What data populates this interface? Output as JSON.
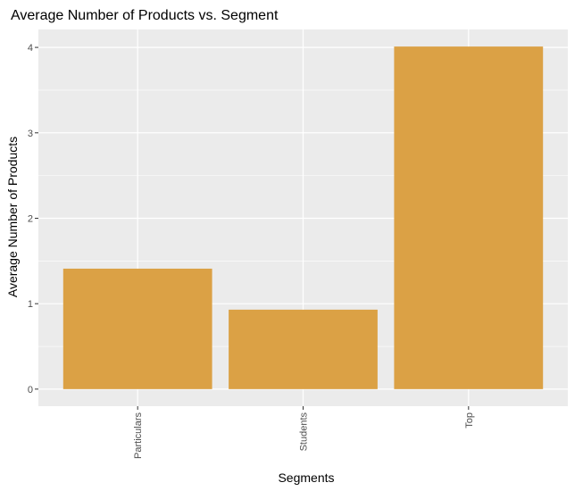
{
  "chart_data": {
    "type": "bar",
    "title": "Average Number of Products vs. Segment",
    "xlabel": "Segments",
    "ylabel": "Average Number of Products",
    "categories": [
      "Particulars",
      "Students",
      "Top"
    ],
    "values": [
      1.41,
      0.93,
      4.01
    ],
    "y_ticks": [
      "0",
      "1",
      "2",
      "3",
      "4"
    ],
    "ylim": [
      -0.2,
      4.21
    ],
    "bar_color": "#DBA145",
    "panel_color": "#EBEBEB",
    "grid": true,
    "legend": "none"
  }
}
